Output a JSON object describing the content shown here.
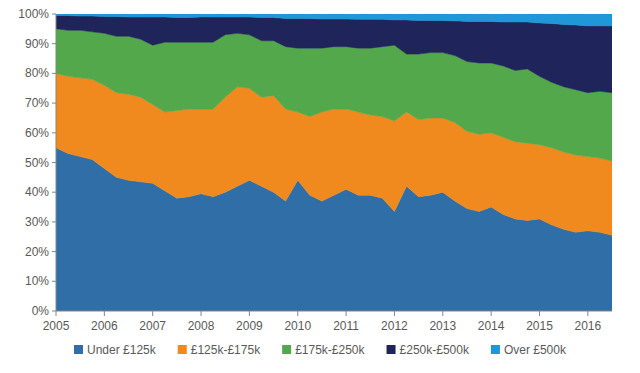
{
  "chart_data": {
    "type": "area",
    "stacked": true,
    "grid": false,
    "legend": "bottom",
    "categories": [
      "2005",
      null,
      null,
      null,
      "2006",
      null,
      null,
      null,
      "2007",
      null,
      null,
      null,
      "2008",
      null,
      null,
      null,
      "2009",
      null,
      null,
      null,
      "2010",
      null,
      null,
      null,
      "2011",
      null,
      null,
      null,
      "2012",
      null,
      null,
      null,
      "2013",
      null,
      null,
      null,
      "2014",
      null,
      null,
      null,
      "2015",
      null,
      null,
      null,
      "2016",
      null,
      null
    ],
    "ylim": [
      0,
      100
    ],
    "yticks": [
      {
        "value": 0,
        "label": "0%"
      },
      {
        "value": 10,
        "label": "10%"
      },
      {
        "value": 20,
        "label": "20%"
      },
      {
        "value": 30,
        "label": "30%"
      },
      {
        "value": 40,
        "label": "40%"
      },
      {
        "value": 50,
        "label": "50%"
      },
      {
        "value": 60,
        "label": "60%"
      },
      {
        "value": 70,
        "label": "70%"
      },
      {
        "value": 80,
        "label": "80%"
      },
      {
        "value": 90,
        "label": "90%"
      },
      {
        "value": 100,
        "label": "100%"
      }
    ],
    "series": [
      {
        "name": "Under £125k",
        "color": "#2f6ea6",
        "values": [
          55,
          53,
          52,
          51,
          48,
          45,
          44,
          43.5,
          43,
          40.5,
          38,
          38.5,
          39.5,
          38.5,
          40,
          42,
          44,
          42,
          40,
          37,
          44,
          39,
          37,
          39,
          41,
          39,
          39,
          38,
          33.5,
          42,
          38.5,
          39,
          40,
          37,
          34.5,
          33.5,
          35,
          32.5,
          31,
          30.5,
          31,
          29,
          27.5,
          26.5,
          27,
          26.5,
          25.5
        ]
      },
      {
        "name": "£125k-£175k",
        "color": "#f08a1e",
        "values": [
          25,
          26,
          26.5,
          27,
          28,
          28.5,
          29,
          28.5,
          26.5,
          26.5,
          29.5,
          29.5,
          28.5,
          29.5,
          32,
          33.5,
          31,
          30,
          32.5,
          31,
          23,
          26.5,
          30,
          29,
          27,
          28,
          27,
          27.5,
          30.5,
          25,
          26,
          26,
          25,
          26.5,
          26,
          26,
          25,
          26,
          26,
          26,
          25,
          26,
          26,
          26,
          25,
          25,
          25
        ]
      },
      {
        "name": "£175k-£250k",
        "color": "#52a84a",
        "values": [
          15,
          15.5,
          16,
          16,
          17.5,
          19,
          19.5,
          19.5,
          20,
          23.5,
          23,
          22.5,
          22.5,
          22.5,
          21,
          18,
          18,
          19,
          18.5,
          21,
          21.5,
          23,
          21.5,
          21,
          21,
          21.5,
          22.5,
          23.5,
          25.5,
          19.5,
          22,
          22,
          22,
          22.5,
          23.5,
          24,
          23.5,
          24,
          24,
          25,
          23,
          22,
          22,
          22,
          21.5,
          22.5,
          23
        ]
      },
      {
        "name": "£250k-£500k",
        "color": "#1f245a",
        "values": [
          4.5,
          5,
          4.8,
          5.3,
          5.7,
          6.7,
          6.5,
          7.5,
          9.5,
          8.5,
          8.3,
          8.3,
          8.5,
          8.5,
          6,
          5.5,
          6,
          7.8,
          7.8,
          9.5,
          10,
          10,
          9.8,
          9.3,
          9.3,
          9.7,
          9.7,
          9.2,
          8.5,
          11.5,
          11.3,
          10.8,
          10.8,
          11.7,
          13.5,
          14,
          14,
          14.8,
          16.3,
          15.8,
          18,
          19.8,
          21,
          21.8,
          22.5,
          22,
          22.5
        ]
      },
      {
        "name": "Over £500k",
        "color": "#1f97d8",
        "values": [
          0.5,
          0.5,
          0.7,
          0.7,
          0.8,
          0.8,
          1,
          1,
          1,
          1,
          1.2,
          1.2,
          1,
          1,
          1,
          1,
          1,
          1.2,
          1.2,
          1.5,
          1.5,
          1.5,
          1.7,
          1.7,
          1.7,
          1.8,
          1.8,
          1.8,
          2,
          2,
          2.2,
          2.2,
          2.2,
          2.3,
          2.5,
          2.5,
          2.5,
          2.7,
          2.7,
          2.7,
          3,
          3.2,
          3.5,
          3.7,
          4,
          4,
          4
        ]
      }
    ]
  }
}
